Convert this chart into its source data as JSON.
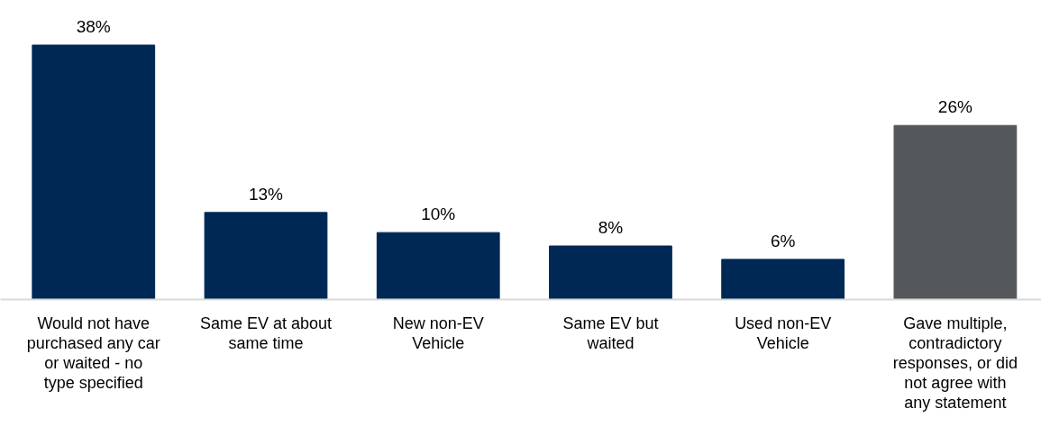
{
  "chart_data": {
    "type": "bar",
    "categories": [
      "Would not have purchased any car or waited - no type specified",
      "Same EV at about same time",
      "New non-EV Vehicle",
      "Same EV but waited",
      "Used non-EV Vehicle",
      "Gave multiple, contradictory responses, or did not agree with any statement"
    ],
    "values": [
      38,
      13,
      10,
      8,
      6,
      26
    ],
    "colors": [
      "#002855",
      "#002855",
      "#002855",
      "#002855",
      "#002855",
      "#54585a"
    ],
    "value_labels": [
      "38%",
      "13%",
      "10%",
      "8%",
      "6%",
      "26%"
    ]
  }
}
